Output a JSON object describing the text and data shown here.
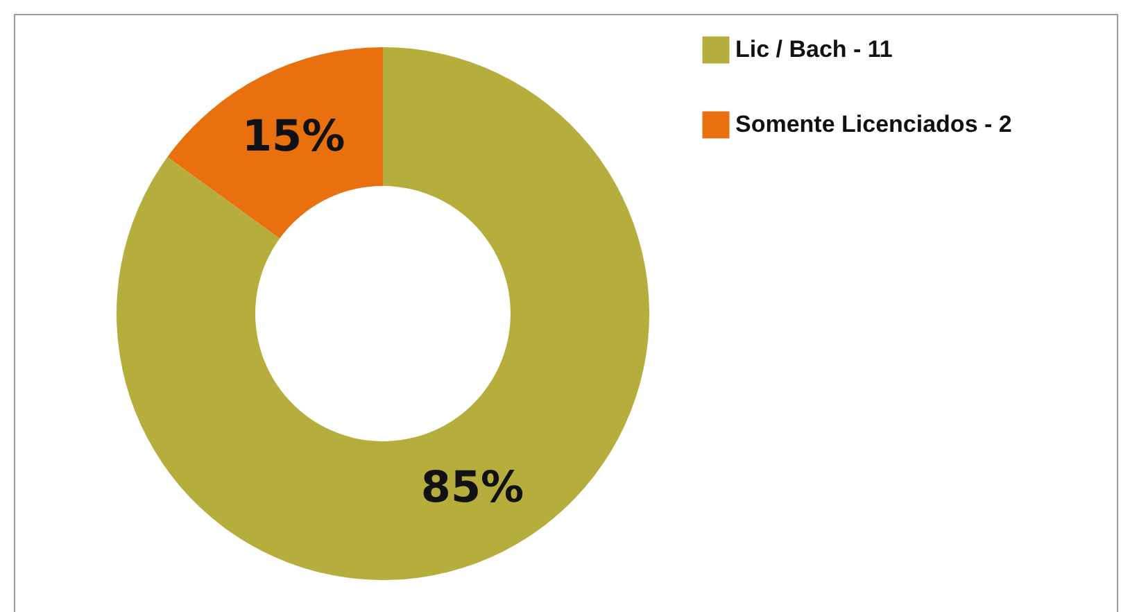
{
  "chart_data": {
    "type": "donut",
    "categories": [
      "Lic / Bach - 11",
      "Somente Licenciados - 2"
    ],
    "values": [
      85,
      15
    ],
    "colors": [
      "#b5ad3c",
      "#e8700f"
    ],
    "value_labels": [
      "85%",
      "15%"
    ],
    "legend": "right"
  }
}
